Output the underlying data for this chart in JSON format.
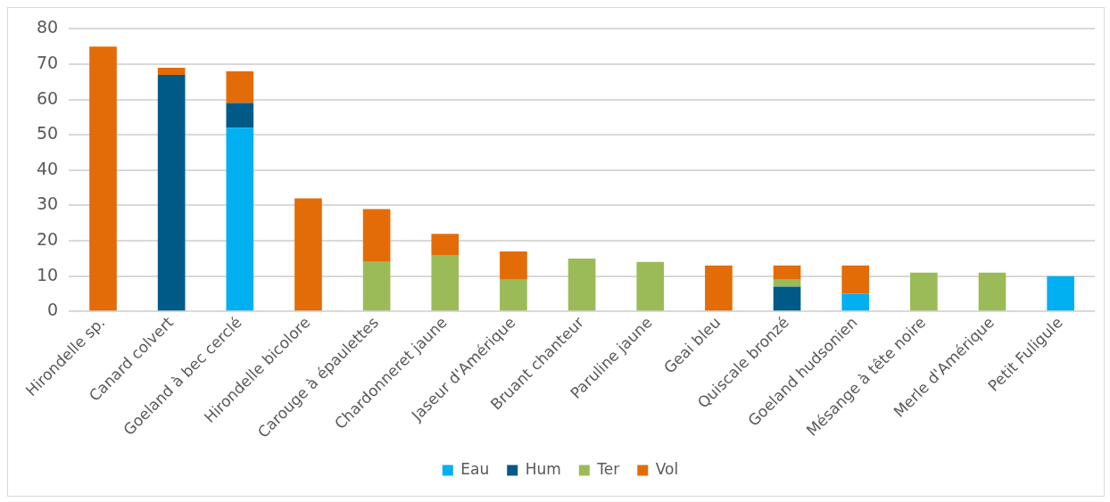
{
  "chart_data": {
    "type": "bar",
    "stacked": true,
    "categories": [
      "Hirondelle sp.",
      "Canard colvert",
      "Goeland à bec cerclé",
      "Hirondelle bicolore",
      "Carouge à épaulettes",
      "Chardonneret jaune",
      "Jaseur d'Amérique",
      "Bruant chanteur",
      "Paruline jaune",
      "Geai bleu",
      "Quiscale bronzé",
      "Goeland hudsonien",
      "Mésange à tête noire",
      "Merle d'Amérique",
      "Petit Fuligule"
    ],
    "series": [
      {
        "name": "Eau",
        "color": "#00b0f0",
        "values": [
          null,
          null,
          52,
          null,
          null,
          null,
          null,
          null,
          null,
          null,
          null,
          5,
          null,
          null,
          10
        ]
      },
      {
        "name": "Hum",
        "color": "#005a87",
        "values": [
          null,
          67,
          7,
          null,
          null,
          null,
          null,
          null,
          null,
          null,
          7,
          null,
          null,
          null,
          null
        ]
      },
      {
        "name": "Ter",
        "color": "#9bbb59",
        "values": [
          null,
          null,
          null,
          null,
          14,
          16,
          9,
          15,
          14,
          null,
          2,
          null,
          11,
          11,
          null
        ]
      },
      {
        "name": "Vol",
        "color": "#e36c09",
        "values": [
          75,
          2,
          9,
          32,
          15,
          6,
          8,
          null,
          null,
          13,
          4,
          8,
          null,
          null,
          null
        ]
      }
    ],
    "ylim": [
      0,
      80
    ],
    "yticks": [
      0,
      10,
      20,
      30,
      40,
      50,
      60,
      70,
      80
    ],
    "grid": "y",
    "legend": "bottom"
  }
}
